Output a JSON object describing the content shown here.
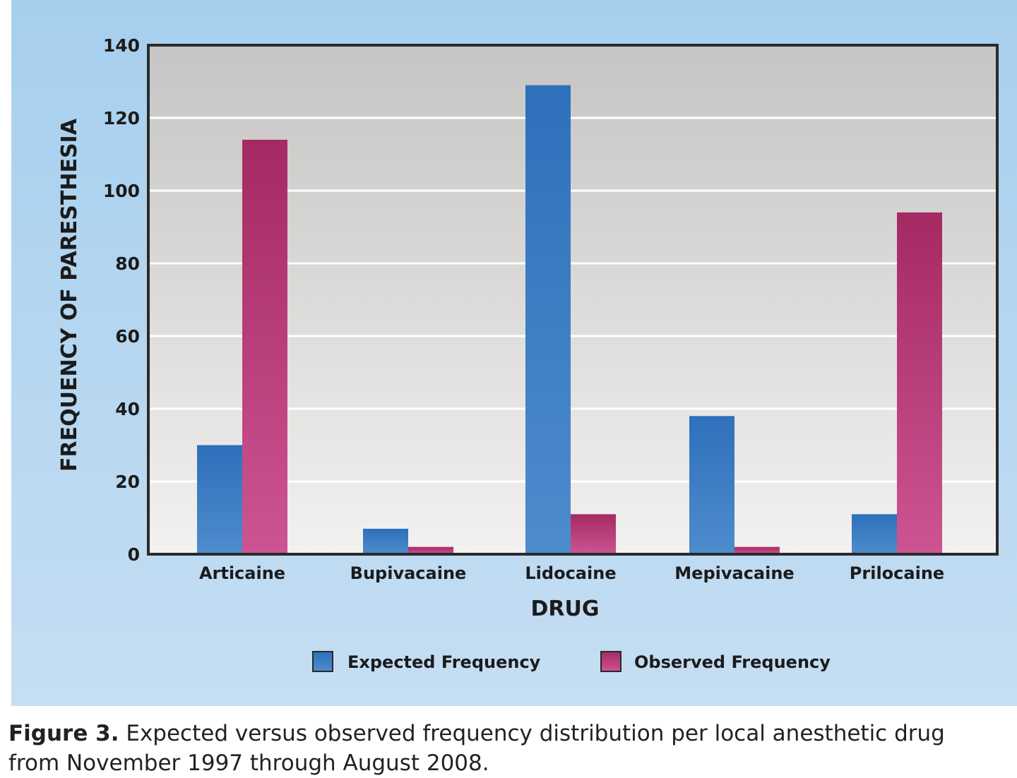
{
  "chart_data": {
    "type": "bar",
    "title": "",
    "xlabel": "DRUG",
    "ylabel": "FREQUENCY OF PARESTHESIA",
    "ylim": [
      0,
      140
    ],
    "yticks": [
      0,
      20,
      40,
      60,
      80,
      100,
      120,
      140
    ],
    "grid": true,
    "legend_position": "bottom",
    "categories": [
      "Articaine",
      "Bupivacaine",
      "Lidocaine",
      "Mepivacaine",
      "Prilocaine"
    ],
    "series": [
      {
        "name": "Expected Frequency",
        "color": "#3a7fc4",
        "values": [
          30,
          7,
          129,
          38,
          11
        ]
      },
      {
        "name": "Observed Frequency",
        "color": "#c23c7a",
        "values": [
          114,
          2,
          11,
          2,
          94
        ]
      }
    ]
  },
  "caption": {
    "label": "Figure 3.",
    "text": "Expected versus observed frequency distribution per local anesthetic drug from November 1997 through August 2008."
  }
}
